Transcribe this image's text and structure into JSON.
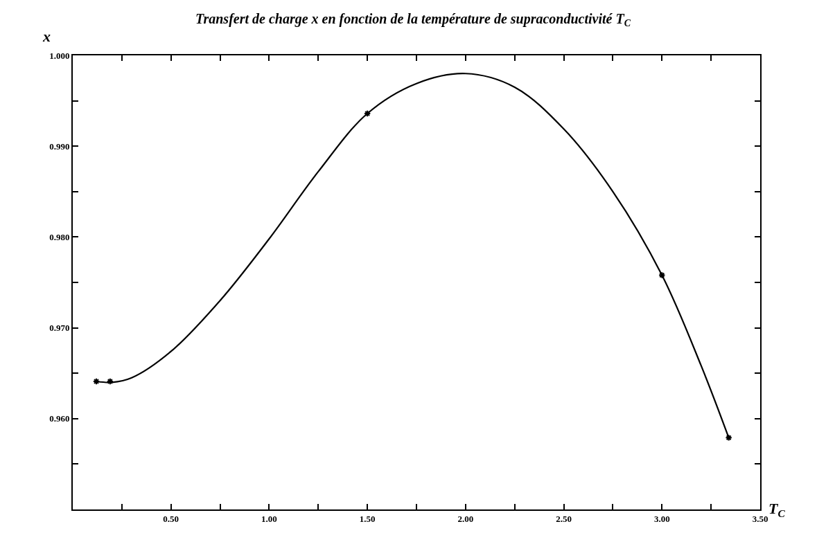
{
  "chart_data": {
    "type": "line",
    "title": "Transfert de charge x en fonction de la température de supraconductivité T$_{C}$",
    "xlabel": "T$_{C}$",
    "ylabel": "x",
    "xlim": [
      0,
      3.5
    ],
    "ylim": [
      0.95,
      1.0
    ],
    "xticks": [
      {
        "value": 0.25,
        "label": null
      },
      {
        "value": 0.5,
        "label": "0.50"
      },
      {
        "value": 0.75,
        "label": null
      },
      {
        "value": 1.0,
        "label": "1.00"
      },
      {
        "value": 1.25,
        "label": null
      },
      {
        "value": 1.5,
        "label": "1.50"
      },
      {
        "value": 1.75,
        "label": null
      },
      {
        "value": 2.0,
        "label": "2.00"
      },
      {
        "value": 2.25,
        "label": null
      },
      {
        "value": 2.5,
        "label": "2.50"
      },
      {
        "value": 2.75,
        "label": null
      },
      {
        "value": 3.0,
        "label": "3.00"
      },
      {
        "value": 3.25,
        "label": null
      },
      {
        "value": 3.5,
        "label": "3.50"
      }
    ],
    "yticks": [
      {
        "value": 0.95,
        "label": null
      },
      {
        "value": 0.955,
        "label": null
      },
      {
        "value": 0.96,
        "label": "0.960"
      },
      {
        "value": 0.965,
        "label": null
      },
      {
        "value": 0.97,
        "label": "0.970"
      },
      {
        "value": 0.975,
        "label": null
      },
      {
        "value": 0.98,
        "label": "0.980"
      },
      {
        "value": 0.985,
        "label": null
      },
      {
        "value": 0.99,
        "label": "0.990"
      },
      {
        "value": 0.995,
        "label": null
      },
      {
        "value": 1.0,
        "label": "1.000"
      }
    ],
    "line_style": "solid",
    "series": [
      {
        "marker": "none",
        "color": "#000000",
        "x": [
          0.12,
          0.2,
          0.3,
          0.5,
          0.75,
          1.0,
          1.25,
          1.5,
          1.75,
          2.0,
          2.25,
          2.5,
          2.75,
          3.0,
          3.2,
          3.34
        ],
        "values": [
          0.9641,
          0.964,
          0.9645,
          0.9674,
          0.973,
          0.9798,
          0.9872,
          0.9936,
          0.9969,
          0.998,
          0.9965,
          0.9919,
          0.985,
          0.9758,
          0.9658,
          0.9579
        ]
      },
      {
        "type": "scatter",
        "marker": "cross",
        "color": "#000000",
        "x": [
          0.12,
          0.19,
          1.5,
          3.0,
          3.34
        ],
        "values": [
          0.9641,
          0.9641,
          0.9936,
          0.9758,
          0.9579
        ]
      }
    ]
  }
}
